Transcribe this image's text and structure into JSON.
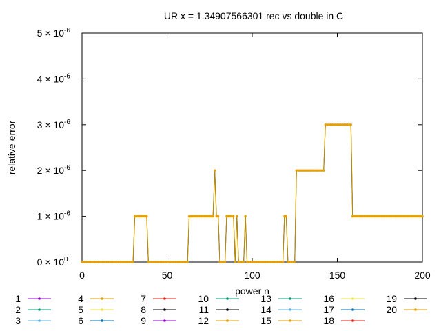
{
  "chart_data": {
    "type": "line",
    "title": "UR x = 1.34907566301 rec vs double in C",
    "xlabel": "power n",
    "ylabel": "relative error",
    "xlim": [
      0,
      200
    ],
    "ylim": [
      0,
      5e-06
    ],
    "x_ticks": [
      {
        "value": 0,
        "label": "0"
      },
      {
        "value": 50,
        "label": "50"
      },
      {
        "value": 100,
        "label": "100"
      },
      {
        "value": 150,
        "label": "150"
      },
      {
        "value": 200,
        "label": "200"
      }
    ],
    "y_ticks": [
      {
        "value": 0,
        "mant": "0 × 10",
        "exp": "0"
      },
      {
        "value": 1e-06,
        "mant": "1 × 10",
        "exp": "-6"
      },
      {
        "value": 2e-06,
        "mant": "2 × 10",
        "exp": "-6"
      },
      {
        "value": 3e-06,
        "mant": "3 × 10",
        "exp": "-6"
      },
      {
        "value": 4e-06,
        "mant": "4 × 10",
        "exp": "-6"
      },
      {
        "value": 5e-06,
        "mant": "5 × 10",
        "exp": "-6"
      }
    ],
    "grid": false,
    "legend_position": "bottom",
    "series": [
      {
        "name": "1",
        "color": "#9400d3"
      },
      {
        "name": "2",
        "color": "#009e73"
      },
      {
        "name": "3",
        "color": "#56b4e9"
      },
      {
        "name": "4",
        "color": "#e69f00"
      },
      {
        "name": "5",
        "color": "#f0e442"
      },
      {
        "name": "6",
        "color": "#0072b2"
      },
      {
        "name": "7",
        "color": "#e51e10"
      },
      {
        "name": "8",
        "color": "#000000"
      },
      {
        "name": "9",
        "color": "#9400d3"
      },
      {
        "name": "10",
        "color": "#009e73"
      },
      {
        "name": "11",
        "color": "#000000"
      },
      {
        "name": "12",
        "color": "#e69f00"
      },
      {
        "name": "13",
        "color": "#009e73"
      },
      {
        "name": "14",
        "color": "#56b4e9"
      },
      {
        "name": "15",
        "color": "#e69f00"
      },
      {
        "name": "16",
        "color": "#f0e442"
      },
      {
        "name": "17",
        "color": "#0072b2"
      },
      {
        "name": "18",
        "color": "#e51e10"
      },
      {
        "name": "19",
        "color": "#000000"
      },
      {
        "name": "20",
        "color": "#e69f00"
      }
    ],
    "data_segments": [
      {
        "x_start": 0,
        "x_end": 30,
        "y": 0
      },
      {
        "x_start": 31,
        "x_end": 38,
        "y": 1e-06
      },
      {
        "x_start": 39,
        "x_end": 62,
        "y": 0
      },
      {
        "x_start": 63,
        "x_end": 77,
        "y": 1e-06
      },
      {
        "x_start": 78,
        "x_end": 78,
        "y": 2e-06
      },
      {
        "x_start": 79,
        "x_end": 80,
        "y": 1e-06
      },
      {
        "x_start": 81,
        "x_end": 84,
        "y": 0
      },
      {
        "x_start": 85,
        "x_end": 89,
        "y": 1e-06
      },
      {
        "x_start": 90,
        "x_end": 90,
        "y": 0
      },
      {
        "x_start": 91,
        "x_end": 91,
        "y": 1e-06
      },
      {
        "x_start": 92,
        "x_end": 95,
        "y": 0
      },
      {
        "x_start": 96,
        "x_end": 96,
        "y": 1e-06
      },
      {
        "x_start": 97,
        "x_end": 118,
        "y": 0
      },
      {
        "x_start": 119,
        "x_end": 120,
        "y": 1e-06
      },
      {
        "x_start": 121,
        "x_end": 125,
        "y": 0
      },
      {
        "x_start": 126,
        "x_end": 142,
        "y": 2e-06
      },
      {
        "x_start": 143,
        "x_end": 158,
        "y": 3e-06
      },
      {
        "x_start": 159,
        "x_end": 200,
        "y": 1e-06
      }
    ]
  }
}
